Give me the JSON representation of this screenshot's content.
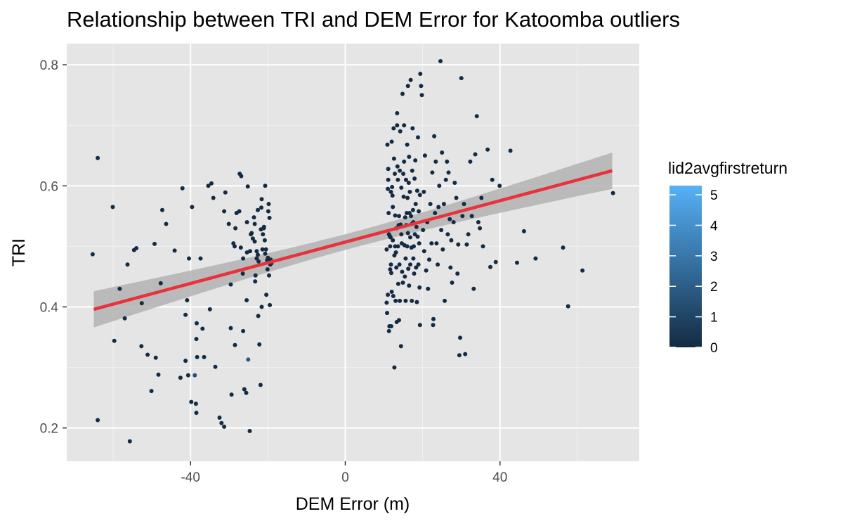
{
  "chart_data": {
    "type": "scatter",
    "title": "Relationship between TRI and DEM Error for Katoomba outliers",
    "xlabel": "DEM Error (m)",
    "ylabel": "TRI",
    "xlim": [
      -72,
      76
    ],
    "ylim": [
      0.145,
      0.835
    ],
    "x_ticks": [
      -40,
      0,
      40
    ],
    "x_tick_labels": [
      "-40",
      "0",
      "40"
    ],
    "y_ticks": [
      0.2,
      0.4,
      0.6,
      0.8
    ],
    "y_tick_labels": [
      "0.2",
      "0.4",
      "0.6",
      "0.8"
    ],
    "grid": true,
    "legend": {
      "title": "lid2avgfirstreturn",
      "position": "right",
      "min": 0,
      "max": 5.3,
      "ticks": [
        0,
        1,
        2,
        3,
        4,
        5
      ],
      "tick_labels": [
        "0",
        "1",
        "2",
        "3",
        "4",
        "5"
      ],
      "color_low": "#132b43",
      "color_high": "#56b1f7"
    },
    "colors": {
      "panel": "#e5e5e5",
      "grid_major": "#ffffff",
      "grid_minor": "#f2f2f2",
      "trend_line": "#e8323c",
      "confidence_band": "#b3b3b3"
    },
    "trend": {
      "x": [
        -65,
        69
      ],
      "y": [
        0.396,
        0.625
      ],
      "ci_lower_end": [
        0.366,
        0.595
      ],
      "ci_upper_end": [
        0.426,
        0.655
      ],
      "ci_center": [
        0.515,
        0.53
      ]
    },
    "points": [
      [
        -65.3,
        0.487,
        0
      ],
      [
        -64,
        0.213,
        0
      ],
      [
        -64,
        0.646,
        0
      ],
      [
        -60.1,
        0.565,
        0
      ],
      [
        -59.7,
        0.344,
        0
      ],
      [
        -58.3,
        0.43,
        0
      ],
      [
        -57,
        0.381,
        0
      ],
      [
        -56.3,
        0.47,
        0
      ],
      [
        -55.7,
        0.178,
        0
      ],
      [
        -54.6,
        0.494,
        0
      ],
      [
        -54,
        0.497,
        0
      ],
      [
        -52.6,
        0.406,
        0
      ],
      [
        -52.7,
        0.335,
        0
      ],
      [
        -51.1,
        0.321,
        0
      ],
      [
        -50.1,
        0.261,
        0
      ],
      [
        -49.3,
        0.504,
        0
      ],
      [
        -49,
        0.316,
        0
      ],
      [
        -48.3,
        0.288,
        0
      ],
      [
        -47.7,
        0.439,
        0
      ],
      [
        -47.3,
        0.56,
        0
      ],
      [
        -46.3,
        0.537,
        0
      ],
      [
        -44.1,
        0.493,
        0
      ],
      [
        -42.6,
        0.283,
        0
      ],
      [
        -42.1,
        0.596,
        0
      ],
      [
        -41.3,
        0.387,
        0
      ],
      [
        -41.3,
        0.311,
        0
      ],
      [
        -40.9,
        0.411,
        0
      ],
      [
        -40.6,
        0.287,
        0
      ],
      [
        -40.4,
        0.48,
        0
      ],
      [
        -39.8,
        0.243,
        0
      ],
      [
        -39.6,
        0.565,
        0
      ],
      [
        -38.9,
        0.287,
        1.6
      ],
      [
        -38.6,
        0.24,
        0
      ],
      [
        -38.5,
        0.225,
        0
      ],
      [
        -38.4,
        0.373,
        0
      ],
      [
        -38.5,
        0.347,
        0
      ],
      [
        -38.3,
        0.317,
        0
      ],
      [
        -37.4,
        0.48,
        0
      ],
      [
        -36.9,
        0.364,
        0
      ],
      [
        -36.5,
        0.317,
        0
      ],
      [
        -35.4,
        0.6,
        0
      ],
      [
        -35,
        0.396,
        0
      ],
      [
        -34.6,
        0.604,
        0
      ],
      [
        -34.1,
        0.58,
        0
      ],
      [
        -33.6,
        0.301,
        0
      ],
      [
        -32.5,
        0.217,
        0
      ],
      [
        -32,
        0.208,
        0
      ],
      [
        -31.3,
        0.558,
        0
      ],
      [
        -31.3,
        0.202,
        0
      ],
      [
        -31,
        0.589,
        0
      ],
      [
        -30.1,
        0.537,
        0
      ],
      [
        -29.6,
        0.437,
        0
      ],
      [
        -29.6,
        0.365,
        0
      ],
      [
        -29.4,
        0.255,
        0
      ],
      [
        -28.9,
        0.505,
        0
      ],
      [
        -28.6,
        0.5,
        0
      ],
      [
        -28.5,
        0.337,
        0
      ],
      [
        -28.4,
        0.53,
        0
      ],
      [
        -28.1,
        0.555,
        0
      ],
      [
        -27.4,
        0.558,
        0
      ],
      [
        -27.3,
        0.62,
        0
      ],
      [
        -27,
        0.498,
        0
      ],
      [
        -26.9,
        0.616,
        0
      ],
      [
        -26.5,
        0.455,
        0
      ],
      [
        -26.4,
        0.36,
        0
      ],
      [
        -26.4,
        0.48,
        0
      ],
      [
        -26.1,
        0.264,
        0
      ],
      [
        -25.6,
        0.258,
        0
      ],
      [
        -25.5,
        0.411,
        0
      ],
      [
        -25.4,
        0.54,
        0
      ],
      [
        -25.4,
        0.49,
        0
      ],
      [
        -25.2,
        0.599,
        0
      ],
      [
        -25.1,
        0.313,
        1.8
      ],
      [
        -24.7,
        0.195,
        0
      ],
      [
        -24.6,
        0.492,
        0
      ],
      [
        -24.4,
        0.52,
        0
      ],
      [
        -24.2,
        0.522,
        0
      ],
      [
        -23.9,
        0.513,
        0
      ],
      [
        -23.6,
        0.548,
        0
      ],
      [
        -23.4,
        0.508,
        0
      ],
      [
        -23.4,
        0.537,
        0
      ],
      [
        -23.3,
        0.442,
        0
      ],
      [
        -23.2,
        0.452,
        0
      ],
      [
        -22.9,
        0.492,
        0
      ],
      [
        -22.9,
        0.48,
        0
      ],
      [
        -22.6,
        0.56,
        0
      ],
      [
        -22.6,
        0.486,
        0
      ],
      [
        -22.5,
        0.385,
        0
      ],
      [
        -22.4,
        0.475,
        0
      ],
      [
        -22.2,
        0.338,
        0
      ],
      [
        -21.9,
        0.271,
        0
      ],
      [
        -21.8,
        0.528,
        0
      ],
      [
        -21.7,
        0.564,
        0
      ],
      [
        -21.6,
        0.4,
        0
      ],
      [
        -21.6,
        0.578,
        0
      ],
      [
        -21.4,
        0.495,
        0
      ],
      [
        -21.3,
        0.52,
        0
      ],
      [
        -21.1,
        0.53,
        0
      ],
      [
        -21,
        0.532,
        0
      ],
      [
        -20.8,
        0.51,
        0
      ],
      [
        -20.7,
        0.488,
        0
      ],
      [
        -20.7,
        0.6,
        0
      ],
      [
        -20.5,
        0.495,
        0
      ],
      [
        -20.4,
        0.42,
        0
      ],
      [
        -20.2,
        0.477,
        0
      ],
      [
        -20.1,
        0.462,
        0
      ],
      [
        -20,
        0.481,
        0
      ],
      [
        -19.9,
        0.558,
        0
      ],
      [
        -19.8,
        0.57,
        0
      ],
      [
        -19.7,
        0.452,
        0
      ],
      [
        -19.6,
        0.547,
        0
      ],
      [
        -19.5,
        0.403,
        0
      ],
      [
        -19.4,
        0.47,
        0
      ],
      [
        -19.3,
        0.478,
        0
      ],
      [
        -19.1,
        0.472,
        0
      ],
      [
        10.7,
        0.495,
        0
      ],
      [
        10.7,
        0.407,
        0
      ],
      [
        10.8,
        0.39,
        0
      ],
      [
        10.9,
        0.668,
        0
      ],
      [
        11,
        0.595,
        0
      ],
      [
        11,
        0.42,
        0
      ],
      [
        11.1,
        0.61,
        0
      ],
      [
        11.1,
        0.628,
        0
      ],
      [
        11.2,
        0.555,
        0
      ],
      [
        11.3,
        0.52,
        0
      ],
      [
        11.3,
        0.36,
        0
      ],
      [
        11.4,
        0.368,
        0
      ],
      [
        11.5,
        0.517,
        0
      ],
      [
        11.6,
        0.5,
        0
      ],
      [
        11.6,
        0.462,
        0
      ],
      [
        11.7,
        0.515,
        0
      ],
      [
        11.8,
        0.47,
        0
      ],
      [
        11.8,
        0.59,
        0
      ],
      [
        11.9,
        0.456,
        0
      ],
      [
        11.9,
        0.368,
        0
      ],
      [
        12,
        0.673,
        0
      ],
      [
        12,
        0.425,
        0
      ],
      [
        12.1,
        0.598,
        0
      ],
      [
        12.2,
        0.584,
        0
      ],
      [
        12.3,
        0.565,
        0
      ],
      [
        12.3,
        0.51,
        0
      ],
      [
        12.4,
        0.418,
        0
      ],
      [
        12.5,
        0.695,
        0
      ],
      [
        12.6,
        0.645,
        0
      ],
      [
        12.7,
        0.485,
        0
      ],
      [
        12.7,
        0.3,
        0
      ],
      [
        12.8,
        0.62,
        0
      ],
      [
        12.9,
        0.551,
        0
      ],
      [
        12.9,
        0.5,
        0
      ],
      [
        13,
        0.41,
        0
      ],
      [
        13.1,
        0.49,
        0
      ],
      [
        13.2,
        0.53,
        0
      ],
      [
        13.2,
        0.465,
        0
      ],
      [
        13.3,
        0.375,
        0
      ],
      [
        13.4,
        0.7,
        0
      ],
      [
        13.4,
        0.72,
        0
      ],
      [
        13.5,
        0.632,
        0
      ],
      [
        13.6,
        0.61,
        0
      ],
      [
        13.6,
        0.5,
        0
      ],
      [
        13.7,
        0.438,
        0
      ],
      [
        13.8,
        0.535,
        0
      ],
      [
        13.9,
        0.55,
        0
      ],
      [
        13.9,
        0.378,
        0
      ],
      [
        14,
        0.47,
        0
      ],
      [
        14.1,
        0.625,
        0
      ],
      [
        14.1,
        0.41,
        0
      ],
      [
        14.2,
        0.69,
        0
      ],
      [
        14.3,
        0.536,
        0
      ],
      [
        14.4,
        0.335,
        0
      ],
      [
        14.5,
        0.597,
        0
      ],
      [
        14.5,
        0.52,
        0
      ],
      [
        14.6,
        0.505,
        0
      ],
      [
        14.7,
        0.458,
        0
      ],
      [
        14.8,
        0.752,
        0
      ],
      [
        14.9,
        0.44,
        0
      ],
      [
        15,
        0.62,
        0
      ],
      [
        15.1,
        0.582,
        0
      ],
      [
        15.2,
        0.7,
        0
      ],
      [
        15.2,
        0.64,
        0
      ],
      [
        15.3,
        0.502,
        0
      ],
      [
        15.4,
        0.45,
        0
      ],
      [
        15.5,
        0.548,
        0
      ],
      [
        15.6,
        0.48,
        0
      ],
      [
        15.6,
        0.41,
        0
      ],
      [
        15.7,
        0.61,
        0
      ],
      [
        15.8,
        0.535,
        0
      ],
      [
        15.9,
        0.555,
        0
      ],
      [
        16,
        0.5,
        0
      ],
      [
        16,
        0.668,
        0
      ],
      [
        16.1,
        0.58,
        0
      ],
      [
        16.2,
        0.765,
        0
      ],
      [
        16.2,
        0.522,
        0
      ],
      [
        16.3,
        0.463,
        0
      ],
      [
        16.4,
        0.605,
        0
      ],
      [
        16.5,
        0.648,
        0
      ],
      [
        16.5,
        0.435,
        0
      ],
      [
        16.6,
        0.555,
        0
      ],
      [
        16.7,
        0.59,
        0
      ],
      [
        16.8,
        0.515,
        0
      ],
      [
        16.8,
        0.47,
        0
      ],
      [
        16.9,
        0.775,
        0
      ],
      [
        17,
        0.55,
        0
      ],
      [
        17.1,
        0.498,
        0
      ],
      [
        17.2,
        0.537,
        0
      ],
      [
        17.2,
        0.41,
        0
      ],
      [
        17.3,
        0.625,
        0
      ],
      [
        17.4,
        0.695,
        0
      ],
      [
        17.5,
        0.56,
        0
      ],
      [
        17.6,
        0.48,
        0
      ],
      [
        17.6,
        0.54,
        0
      ],
      [
        17.7,
        0.5,
        0
      ],
      [
        17.8,
        0.455,
        0
      ],
      [
        17.9,
        0.612,
        0
      ],
      [
        18,
        0.52,
        0
      ],
      [
        18.1,
        0.642,
        0
      ],
      [
        18.2,
        0.57,
        0
      ],
      [
        18.3,
        0.465,
        0
      ],
      [
        18.4,
        0.532,
        0
      ],
      [
        18.5,
        0.408,
        0
      ],
      [
        18.6,
        0.592,
        0
      ],
      [
        18.7,
        0.516,
        0
      ],
      [
        18.8,
        0.68,
        0
      ],
      [
        18.9,
        0.47,
        0
      ],
      [
        19,
        0.558,
        0
      ],
      [
        19.1,
        0.505,
        0
      ],
      [
        19.2,
        0.432,
        0
      ],
      [
        19.3,
        0.585,
        0
      ],
      [
        19.3,
        0.37,
        0
      ],
      [
        19.4,
        0.785,
        0
      ],
      [
        19.6,
        0.765,
        0
      ],
      [
        19.8,
        0.75,
        0
      ],
      [
        20.1,
        0.527,
        0
      ],
      [
        20.3,
        0.59,
        0
      ],
      [
        20.4,
        0.492,
        0
      ],
      [
        20.6,
        0.65,
        0
      ],
      [
        20.9,
        0.46,
        0
      ],
      [
        21.2,
        0.54,
        0
      ],
      [
        21.4,
        0.43,
        0
      ],
      [
        21.7,
        0.478,
        0
      ],
      [
        22,
        0.57,
        0
      ],
      [
        22.3,
        0.505,
        0
      ],
      [
        22.5,
        0.622,
        0
      ],
      [
        22.7,
        0.37,
        0
      ],
      [
        22.8,
        0.38,
        0
      ],
      [
        23,
        0.682,
        0
      ],
      [
        23.2,
        0.555,
        0
      ],
      [
        23.4,
        0.64,
        0
      ],
      [
        23.6,
        0.505,
        0
      ],
      [
        23.9,
        0.47,
        0
      ],
      [
        24.1,
        0.565,
        0
      ],
      [
        24.3,
        0.6,
        0
      ],
      [
        24.6,
        0.806,
        0
      ],
      [
        24.8,
        0.527,
        0
      ],
      [
        25,
        0.655,
        0
      ],
      [
        25.2,
        0.495,
        0
      ],
      [
        25.5,
        0.57,
        0
      ],
      [
        25.7,
        0.41,
        0
      ],
      [
        26,
        0.61,
        0
      ],
      [
        26.3,
        0.64,
        0
      ],
      [
        26.5,
        0.52,
        0
      ],
      [
        26.7,
        0.622,
        0
      ],
      [
        27,
        0.545,
        0
      ],
      [
        27.2,
        0.465,
        0
      ],
      [
        27.4,
        0.51,
        0
      ],
      [
        27.6,
        0.44,
        0
      ],
      [
        28,
        0.54,
        0
      ],
      [
        28.3,
        0.605,
        0
      ],
      [
        28.7,
        0.58,
        0
      ],
      [
        29,
        0.455,
        0
      ],
      [
        29.2,
        0.503,
        0
      ],
      [
        29.5,
        0.32,
        0
      ],
      [
        29.7,
        0.349,
        0
      ],
      [
        30,
        0.778,
        0
      ],
      [
        30.3,
        0.55,
        0
      ],
      [
        30.7,
        0.57,
        0
      ],
      [
        31,
        0.322,
        0
      ],
      [
        31.4,
        0.503,
        0
      ],
      [
        31.8,
        0.52,
        0
      ],
      [
        32.3,
        0.64,
        0
      ],
      [
        32.7,
        0.55,
        0
      ],
      [
        33.2,
        0.43,
        0
      ],
      [
        33.6,
        0.652,
        0
      ],
      [
        34,
        0.715,
        0
      ],
      [
        34.4,
        0.54,
        0
      ],
      [
        34.8,
        0.53,
        0
      ],
      [
        35.2,
        0.58,
        0
      ],
      [
        35.6,
        0.5,
        0
      ],
      [
        36.8,
        0.66,
        0
      ],
      [
        37.5,
        0.466,
        0
      ],
      [
        38,
        0.61,
        0
      ],
      [
        38.9,
        0.474,
        0
      ],
      [
        39.9,
        0.6,
        0
      ],
      [
        42.7,
        0.658,
        0
      ],
      [
        44.4,
        0.473,
        0
      ],
      [
        46.2,
        0.525,
        0
      ],
      [
        49.2,
        0.48,
        0
      ],
      [
        56.3,
        0.498,
        0
      ],
      [
        57.6,
        0.401,
        0
      ],
      [
        61.3,
        0.46,
        0
      ],
      [
        69.2,
        0.588,
        0
      ]
    ]
  }
}
